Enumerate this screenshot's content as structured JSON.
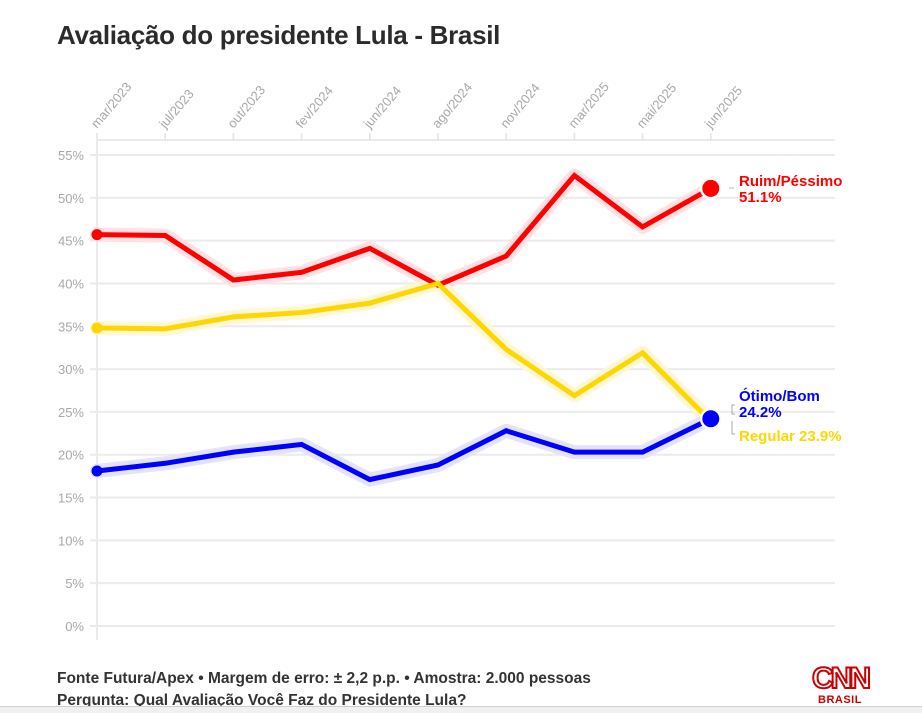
{
  "title": "Avaliação do presidente Lula - Brasil",
  "footer": {
    "source_line": "Fonte Futura/Apex • Margem de erro: ± 2,2 p.p. • Amostra: 2.000 pessoas",
    "question_line": "Pergunta: Qual Avaliação Você Faz do Presidente Lula?"
  },
  "logo": {
    "main": "CNN",
    "sub": "BRASIL",
    "color": "#cc0000"
  },
  "chart_data": {
    "type": "line",
    "title": "Avaliação do presidente Lula - Brasil",
    "xlabel": "",
    "ylabel": "",
    "x": [
      "mar/2023",
      "jul/2023",
      "out/2023",
      "fev/2024",
      "jun/2024",
      "ago/2024",
      "nov/2024",
      "mar/2025",
      "mai/2025",
      "jun/2025"
    ],
    "ylim": [
      0,
      55
    ],
    "yticks": [
      0,
      5,
      10,
      15,
      20,
      25,
      30,
      35,
      40,
      45,
      50,
      55
    ],
    "ytick_labels": [
      "0%",
      "5%",
      "10%",
      "15%",
      "20%",
      "25%",
      "30%",
      "35%",
      "40%",
      "45%",
      "50%",
      "55%"
    ],
    "x_axis_position": "top",
    "grid": true,
    "legend": "end-labels-right",
    "series": [
      {
        "name": "Ruim/Péssimo",
        "color": "#ff0000",
        "halo": "#ffe0e3",
        "values": [
          45.7,
          45.6,
          40.4,
          41.3,
          44.1,
          39.8,
          43.2,
          52.6,
          46.6,
          51.1
        ],
        "end_label": "Ruim/Péssimo",
        "end_value_label": "51.1%"
      },
      {
        "name": "Regular",
        "color": "#ffd700",
        "halo": "#fff7d6",
        "values": [
          34.8,
          34.7,
          36.1,
          36.6,
          37.7,
          40.0,
          32.3,
          26.9,
          31.9,
          23.9
        ],
        "end_label": "Regular 23.9%"
      },
      {
        "name": "Ótimo/Bom",
        "color": "#0000ff",
        "halo": "#e3e3fa",
        "values": [
          18.1,
          19.0,
          20.3,
          21.2,
          17.1,
          18.8,
          22.8,
          20.3,
          20.3,
          24.2
        ],
        "end_label": "Ótimo/Bom",
        "end_value_label": "24.2%"
      }
    ]
  }
}
